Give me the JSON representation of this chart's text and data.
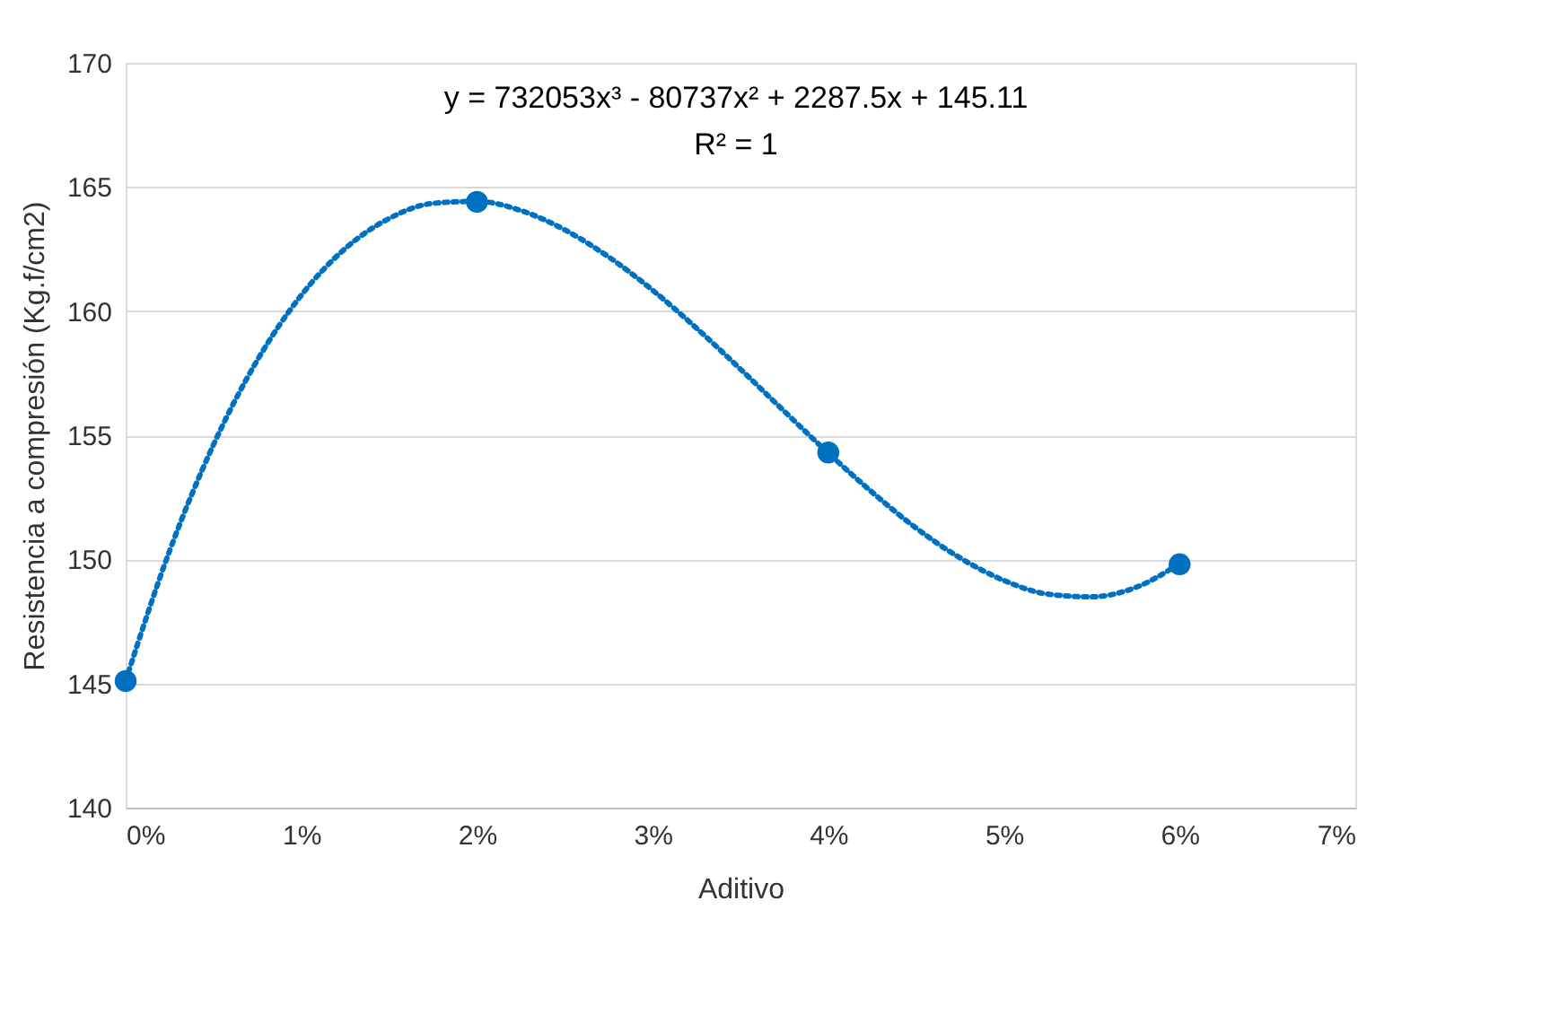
{
  "chart_data": {
    "type": "scatter",
    "xlabel": "Aditivo",
    "ylabel": "Resistencia a compresión (Kg.f/cm2)",
    "annotations": [
      "y = 732053x³ - 80737x² + 2287.5x + 145.11",
      "R² = 1"
    ],
    "xlim": [
      0,
      0.07
    ],
    "xticks": [
      {
        "value": 0,
        "label": "0%"
      },
      {
        "value": 0.01,
        "label": "1%"
      },
      {
        "value": 0.02,
        "label": "2%"
      },
      {
        "value": 0.03,
        "label": "3%"
      },
      {
        "value": 0.04,
        "label": "4%"
      },
      {
        "value": 0.05,
        "label": "5%"
      },
      {
        "value": 0.06,
        "label": "6%"
      },
      {
        "value": 0.07,
        "label": "7%"
      }
    ],
    "ylim": [
      140,
      170
    ],
    "yticks": [
      140,
      145,
      150,
      155,
      160,
      165,
      170
    ],
    "grid": "y",
    "series": [
      {
        "type": "scatter",
        "color": "#0070c0",
        "marker": "circle",
        "x": [
          0,
          0.02,
          0.04,
          0.06
        ],
        "values": [
          145.1,
          164.4,
          154.3,
          149.8
        ]
      },
      {
        "type": "line",
        "color": "#0070c0",
        "line_style": "dotted",
        "marker": "none",
        "x": [
          0,
          0.0025,
          0.005,
          0.0075,
          0.01,
          0.0125,
          0.015,
          0.0175,
          0.02,
          0.0225,
          0.025,
          0.0275,
          0.03,
          0.0325,
          0.035,
          0.0375,
          0.04,
          0.0425,
          0.045,
          0.0475,
          0.05,
          0.0525,
          0.055,
          0.0575,
          0.06
        ],
        "values": [
          145.11,
          150.34,
          154.62,
          158.03,
          160.64,
          162.52,
          163.73,
          164.34,
          164.42,
          164.05,
          163.27,
          162.18,
          160.84,
          159.31,
          157.66,
          155.96,
          154.28,
          152.7,
          151.26,
          150.06,
          149.15,
          148.6,
          148.49,
          148.87,
          149.83
        ]
      }
    ]
  }
}
